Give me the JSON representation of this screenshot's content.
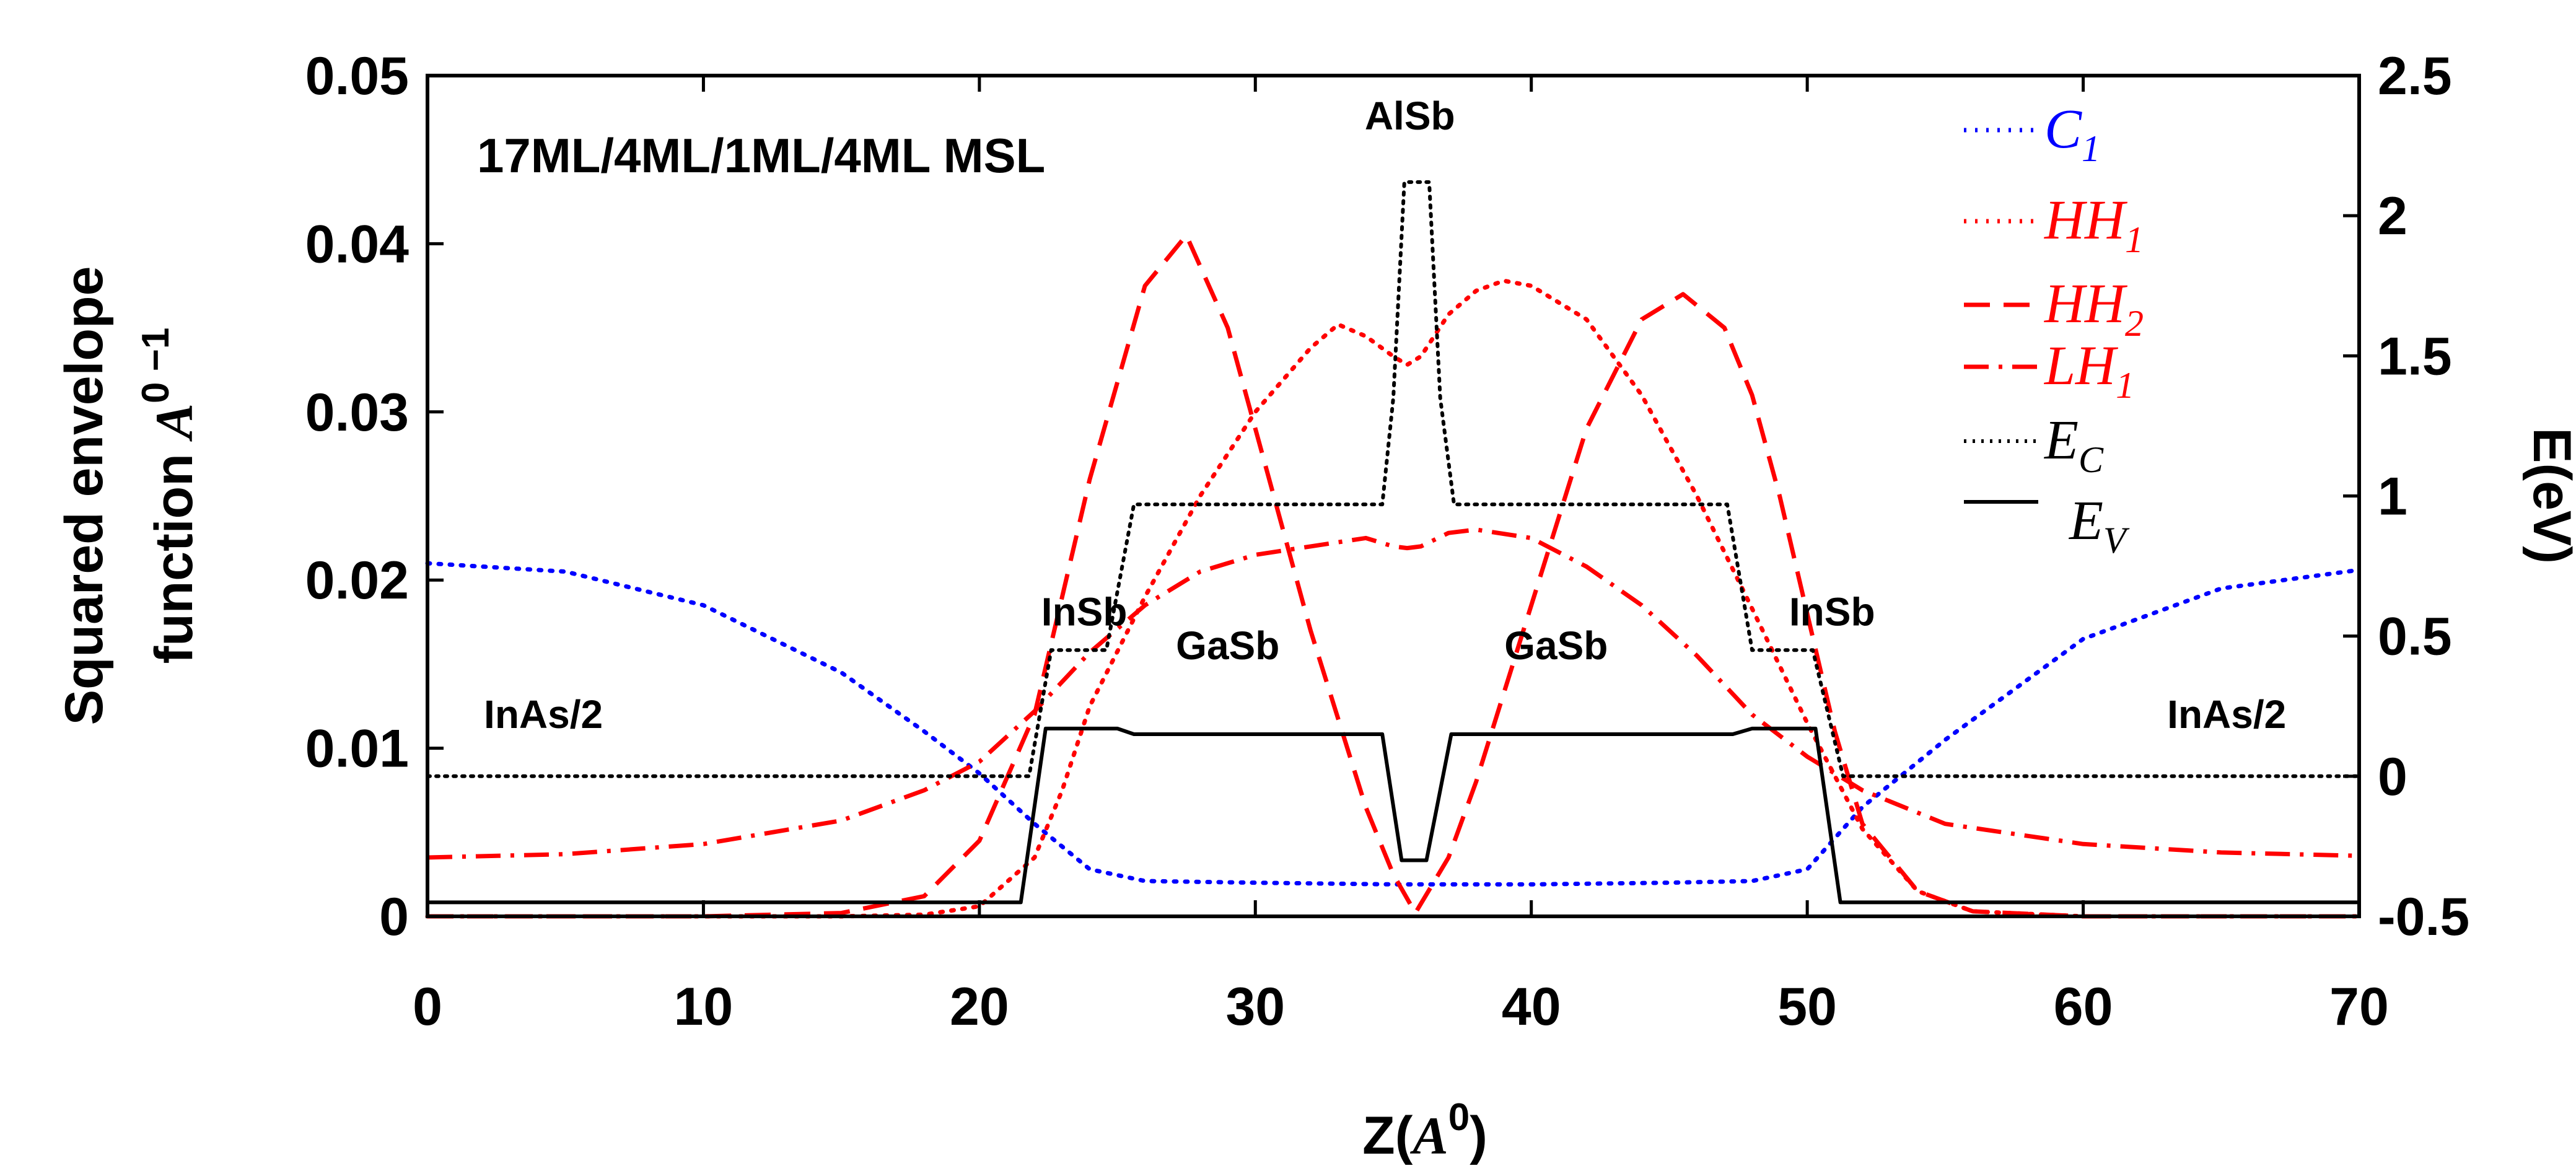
{
  "chart_data": {
    "type": "line",
    "title": "17ML/4ML/1ML/4ML MSL",
    "xlabel": {
      "prefix": "Z(",
      "italic": "A",
      "sup": "0",
      "suffix": ")"
    },
    "ylabel": {
      "line1": "Squared envelope",
      "line2_prefix": "function ",
      "italic": "A",
      "sup": "0 −1"
    },
    "y2label": "E(eV)",
    "xlim": [
      0,
      70
    ],
    "ylim": [
      0,
      0.05
    ],
    "y2lim": [
      -0.5,
      2.5
    ],
    "x_ticks": [
      0,
      10,
      20,
      30,
      40,
      50,
      60,
      70
    ],
    "x_tick_labels": [
      "0",
      "10",
      "20",
      "30",
      "40",
      "50",
      "60",
      "70"
    ],
    "y_ticks": [
      0,
      0.01,
      0.02,
      0.03,
      0.04,
      0.05
    ],
    "y_tick_labels": [
      "0",
      "0.01",
      "0.02",
      "0.03",
      "0.04",
      "0.05"
    ],
    "y2_ticks": [
      -0.5,
      0,
      0.5,
      1,
      1.5,
      2,
      2.5
    ],
    "y2_tick_labels": [
      "-0.5",
      "0",
      "0.5",
      "1",
      "1.5",
      "2",
      "2.5"
    ],
    "annotations": [
      {
        "text": "AlSb",
        "x": 35.6,
        "y": 0.0468
      },
      {
        "text": "InSb",
        "x": 23.8,
        "y": 0.0173
      },
      {
        "text": "GaSb",
        "x": 29.0,
        "y": 0.0153
      },
      {
        "text": "GaSb",
        "x": 40.9,
        "y": 0.0153
      },
      {
        "text": "InSb",
        "x": 50.9,
        "y": 0.0173
      },
      {
        "text": "InAs/2",
        "x": 4.2,
        "y": 0.0112
      },
      {
        "text": "InAs/2",
        "x": 65.2,
        "y": 0.0112
      }
    ],
    "legend": {
      "position": "top-right",
      "entries": [
        {
          "base": "C",
          "sub": "1"
        },
        {
          "base": "HH",
          "sub": "1"
        },
        {
          "base": "HH",
          "sub": "2"
        },
        {
          "base": "LH",
          "sub": "1"
        },
        {
          "base": "E",
          "sub": "C"
        },
        {
          "base": "E",
          "sub": "V"
        }
      ]
    },
    "series": [
      {
        "name": "C1",
        "axis": "left",
        "color": "#0000ff",
        "dash": "dot",
        "x": [
          0,
          5,
          10,
          15,
          18,
          20,
          22,
          24,
          26,
          30,
          35,
          40,
          45,
          48,
          50,
          52,
          55,
          60,
          65,
          70
        ],
        "y": [
          0.021,
          0.0205,
          0.0185,
          0.0145,
          0.011,
          0.0085,
          0.0055,
          0.0028,
          0.0021,
          0.002,
          0.0019,
          0.0019,
          0.002,
          0.0021,
          0.0028,
          0.0065,
          0.0105,
          0.0165,
          0.0195,
          0.0206
        ]
      },
      {
        "name": "HH1",
        "axis": "left",
        "color": "#ff0000",
        "dash": "dot",
        "x": [
          0,
          15,
          18,
          20,
          22,
          23,
          24,
          26,
          28,
          30,
          32,
          33,
          34,
          35,
          35.5,
          36,
          37,
          38,
          39,
          40,
          42,
          44,
          46,
          48,
          50,
          52,
          54,
          56,
          60,
          70
        ],
        "y": [
          0,
          0,
          0.0001,
          0.0006,
          0.0035,
          0.0075,
          0.0125,
          0.019,
          0.025,
          0.03,
          0.0338,
          0.0352,
          0.0345,
          0.0333,
          0.0328,
          0.0333,
          0.0358,
          0.0372,
          0.0378,
          0.0375,
          0.0355,
          0.031,
          0.025,
          0.0183,
          0.0115,
          0.0052,
          0.0015,
          0.0003,
          0,
          0
        ]
      },
      {
        "name": "HH2",
        "axis": "left",
        "color": "#ff0000",
        "dash": "dash",
        "x": [
          0,
          10,
          15,
          18,
          20,
          22,
          24,
          26,
          27.5,
          29,
          30,
          32,
          34,
          35,
          35.8,
          37,
          38,
          40,
          42,
          44,
          45.5,
          47,
          48,
          49,
          50,
          51,
          52,
          54,
          56,
          60,
          70
        ],
        "y": [
          0,
          0,
          0.0002,
          0.0012,
          0.0045,
          0.012,
          0.026,
          0.0375,
          0.0405,
          0.035,
          0.029,
          0.017,
          0.0065,
          0.0025,
          0.0002,
          0.0035,
          0.008,
          0.0185,
          0.029,
          0.0355,
          0.037,
          0.035,
          0.031,
          0.025,
          0.018,
          0.011,
          0.0055,
          0.0015,
          0.0003,
          0,
          0
        ]
      },
      {
        "name": "LH1",
        "axis": "left",
        "color": "#ff0000",
        "dash": "dashdot",
        "x": [
          0,
          5,
          10,
          15,
          18,
          20,
          22,
          24,
          26,
          28,
          30,
          32,
          34,
          35,
          35.5,
          36,
          37,
          38,
          40,
          42,
          44,
          46,
          48,
          50,
          52,
          55,
          60,
          65,
          70
        ],
        "y": [
          0.0035,
          0.0037,
          0.0043,
          0.0057,
          0.0075,
          0.0092,
          0.0122,
          0.0157,
          0.0185,
          0.0205,
          0.0215,
          0.022,
          0.0225,
          0.022,
          0.0219,
          0.022,
          0.0228,
          0.023,
          0.0225,
          0.0208,
          0.0185,
          0.0155,
          0.012,
          0.0095,
          0.0075,
          0.0055,
          0.0043,
          0.0038,
          0.0036
        ]
      },
      {
        "name": "Ec",
        "axis": "right",
        "color": "#000000",
        "dash": "dotsmall",
        "x": [
          0,
          21.8,
          22.6,
          24.6,
          25.6,
          34.6,
          35,
          35.4,
          36.3,
          36.7,
          37.2,
          47.1,
          48,
          50.2,
          51.3,
          70
        ],
        "y": [
          0,
          0,
          0.45,
          0.45,
          0.97,
          0.97,
          1.35,
          2.12,
          2.12,
          1.35,
          0.97,
          0.97,
          0.45,
          0.45,
          0,
          0
        ]
      },
      {
        "name": "Ev",
        "axis": "right",
        "color": "#000000",
        "dash": "solid",
        "x": [
          0,
          21.5,
          22.4,
          25,
          25.6,
          34.6,
          35.3,
          36.2,
          37.1,
          47.3,
          48,
          50.3,
          51.2,
          70
        ],
        "y": [
          -0.45,
          -0.45,
          0.17,
          0.17,
          0.15,
          0.15,
          -0.3,
          -0.3,
          0.15,
          0.15,
          0.17,
          0.17,
          -0.45,
          -0.45
        ]
      }
    ]
  }
}
